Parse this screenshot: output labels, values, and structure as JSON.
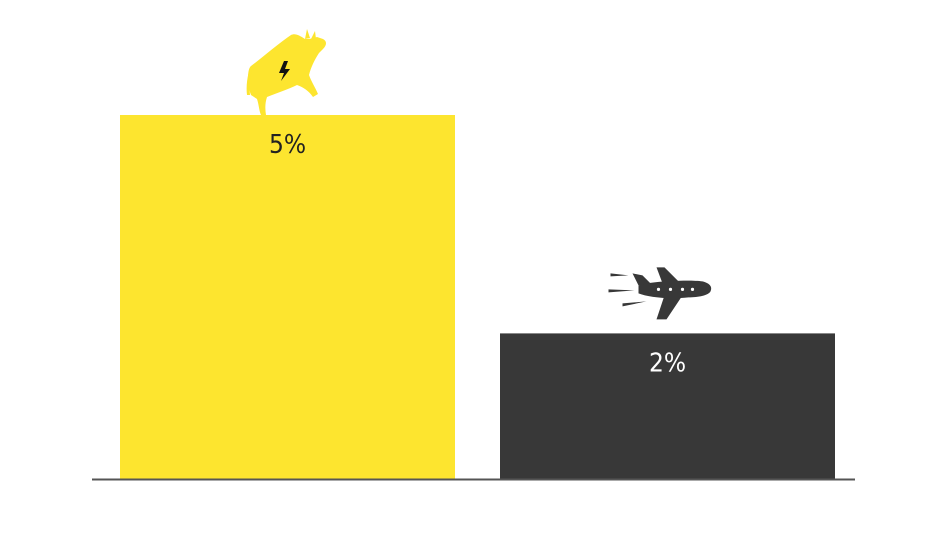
{
  "chart_data": {
    "type": "bar",
    "title": "",
    "xlabel": "",
    "ylabel": "",
    "ylim": [
      0,
      5
    ],
    "grid": false,
    "legend": "none",
    "categories": [
      "",
      ""
    ],
    "values": [
      5,
      2
    ],
    "value_labels": [
      "5%",
      "2%"
    ],
    "icons": [
      "cow-icon",
      "airplane-icon"
    ],
    "colors": [
      "#fde52f",
      "#383838"
    ],
    "label_colors": [
      "#222222",
      "#ffffff"
    ]
  },
  "colors": {
    "baseline": "#555555",
    "icon_yellow": "#fde52f",
    "icon_dark": "#383838"
  }
}
